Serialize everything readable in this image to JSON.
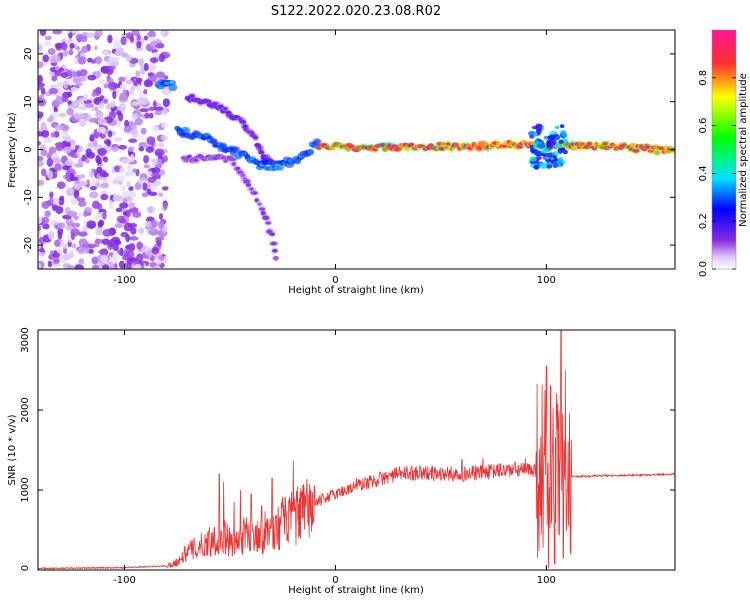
{
  "title": "S122.2022.020.23.08.R02",
  "colors": {
    "snr_line": "#ee3333",
    "colormap": [
      "#ffffff",
      "#dcc8f5",
      "#8a2be2",
      "#0000ff",
      "#00e5ff",
      "#00ff00",
      "#ffff00",
      "#ff3030",
      "#ff1493"
    ]
  },
  "chart_data": [
    {
      "type": "heatmap",
      "name": "spectrogram",
      "xlabel": "Height of straight line (km)",
      "ylabel": "Frequency (Hz)",
      "xlim": [
        -141,
        161
      ],
      "ylim": [
        -25,
        25
      ],
      "xticks": [
        -100,
        0,
        100
      ],
      "xtick_labels": [
        "-100",
        "0",
        "100"
      ],
      "yticks": [
        20,
        10,
        0,
        -10,
        -20
      ],
      "ytick_labels": [
        "20",
        "10",
        "0",
        "-10",
        "-20"
      ],
      "colorbar": {
        "label": "Normalized spectral amplitude",
        "range": [
          0,
          1
        ],
        "ticks": [
          0.0,
          0.2,
          0.4,
          0.6,
          0.8
        ],
        "tick_labels": [
          "0.0",
          "0.2",
          "0.4",
          "0.6",
          "0.8"
        ]
      },
      "features": [
        {
          "kind": "noise",
          "x_range": [
            -141,
            -80
          ],
          "freq_range": [
            -25,
            25
          ],
          "amplitude": 0.12
        },
        {
          "kind": "path",
          "points": [
            [
              -84,
              13.5
            ],
            [
              -80,
              13.8
            ],
            [
              -76,
              13.2
            ]
          ],
          "freq_width": 1.2,
          "amplitude": 0.35
        },
        {
          "kind": "path",
          "points": [
            [
              -70,
              11
            ],
            [
              -55,
              9
            ],
            [
              -45,
              6
            ],
            [
              -38,
              2
            ],
            [
              -33,
              -2
            ],
            [
              -28,
              -4
            ]
          ],
          "freq_width": 1.0,
          "amplitude": 0.15
        },
        {
          "kind": "path",
          "points": [
            [
              -75,
              4
            ],
            [
              -65,
              3
            ],
            [
              -55,
              1
            ],
            [
              -45,
              -1
            ],
            [
              -38,
              -3
            ],
            [
              -30,
              -3.5
            ],
            [
              -20,
              -2.5
            ],
            [
              -12,
              0
            ],
            [
              -8,
              1.5
            ]
          ],
          "freq_width": 1.6,
          "amplitude": 0.32
        },
        {
          "kind": "path",
          "points": [
            [
              -72,
              -2
            ],
            [
              -60,
              -1.5
            ],
            [
              -50,
              -2
            ],
            [
              -45,
              -5
            ],
            [
              -40,
              -8
            ],
            [
              -35,
              -12
            ],
            [
              -30,
              -18
            ],
            [
              -28,
              -24
            ]
          ],
          "freq_width": 1.0,
          "amplitude": 0.12
        },
        {
          "kind": "path",
          "points": [
            [
              -8,
              0.8
            ],
            [
              10,
              0.3
            ],
            [
              30,
              0.5
            ],
            [
              60,
              0.7
            ],
            [
              80,
              1.0
            ],
            [
              95,
              1.2
            ],
            [
              105,
              0.8
            ],
            [
              130,
              0.6
            ],
            [
              161,
              -0.3
            ]
          ],
          "freq_width": 1.2,
          "amplitude": 0.9
        },
        {
          "kind": "blob",
          "x_range": [
            93,
            110
          ],
          "freq_range": [
            -4,
            5
          ],
          "amplitude": 0.3
        }
      ]
    },
    {
      "type": "line",
      "name": "snr",
      "xlabel": "Height of straight line (km)",
      "ylabel": "SNR (10 * v/v)",
      "xlim": [
        -141,
        161
      ],
      "ylim": [
        0,
        3000
      ],
      "xticks": [
        -100,
        0,
        100
      ],
      "xtick_labels": [
        "-100",
        "0",
        "100"
      ],
      "yticks": [
        0,
        1000,
        2000,
        3000
      ],
      "ytick_labels": [
        "0",
        "1000",
        "2000",
        "3000"
      ],
      "series": [
        {
          "envelope_x": [
            -141,
            -100,
            -80,
            -75,
            -70,
            -62,
            -58,
            -55,
            -52,
            -50,
            -48,
            -45,
            -42,
            -40,
            -38,
            -35,
            -32,
            -30,
            -25,
            -20,
            -15,
            -10,
            -5,
            0,
            10,
            20,
            30,
            40,
            50,
            60,
            70,
            80,
            90,
            95,
            98,
            100,
            102,
            104,
            106,
            108,
            110,
            112,
            115,
            130,
            150,
            161
          ],
          "envelope_y": [
            20,
            30,
            50,
            100,
            230,
            320,
            400,
            350,
            420,
            350,
            300,
            400,
            450,
            380,
            500,
            420,
            520,
            470,
            580,
            650,
            720,
            820,
            900,
            950,
            1050,
            1130,
            1200,
            1220,
            1200,
            1200,
            1220,
            1250,
            1250,
            1260,
            1300,
            1200,
            1200,
            1180,
            1150,
            1100,
            1150,
            1170,
            1170,
            1180,
            1190,
            1200
          ],
          "spikes": [
            [
              -55,
              1200
            ],
            [
              -53,
              1100
            ],
            [
              -48,
              850
            ],
            [
              -45,
              1000
            ],
            [
              -40,
              950
            ],
            [
              -35,
              800
            ],
            [
              -30,
              1150
            ],
            [
              -25,
              900
            ],
            [
              -20,
              1370
            ],
            [
              -10,
              1050
            ],
            [
              10,
              1150
            ],
            [
              40,
              1300
            ],
            [
              60,
              1380
            ],
            [
              70,
              1400
            ],
            [
              90,
              1400
            ],
            [
              100,
              2550
            ],
            [
              101,
              20
            ],
            [
              102,
              2300
            ],
            [
              104,
              80
            ],
            [
              106,
              2000
            ],
            [
              107,
              3000
            ],
            [
              108,
              150
            ],
            [
              109,
              2500
            ],
            [
              110,
              1000
            ]
          ]
        }
      ]
    }
  ]
}
